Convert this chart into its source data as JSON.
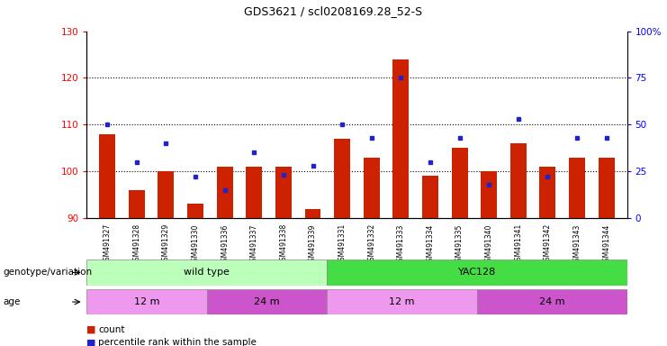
{
  "title": "GDS3621 / scl0208169.28_52-S",
  "samples": [
    "GSM491327",
    "GSM491328",
    "GSM491329",
    "GSM491330",
    "GSM491336",
    "GSM491337",
    "GSM491338",
    "GSM491339",
    "GSM491331",
    "GSM491332",
    "GSM491333",
    "GSM491334",
    "GSM491335",
    "GSM491340",
    "GSM491341",
    "GSM491342",
    "GSM491343",
    "GSM491344"
  ],
  "counts": [
    108,
    96,
    100,
    93,
    101,
    101,
    101,
    92,
    107,
    103,
    124,
    99,
    105,
    100,
    106,
    101,
    103,
    103
  ],
  "percentile_ranks": [
    50,
    30,
    40,
    22,
    15,
    35,
    23,
    28,
    50,
    43,
    75,
    30,
    43,
    18,
    53,
    22,
    43,
    43
  ],
  "ylim_left": [
    90,
    130
  ],
  "ylim_right": [
    0,
    100
  ],
  "yticks_left": [
    90,
    100,
    110,
    120,
    130
  ],
  "yticks_right": [
    0,
    25,
    50,
    75,
    100
  ],
  "bar_color": "#cc2200",
  "dot_color": "#2222cc",
  "background_color": "#ffffff",
  "genotype_groups": [
    {
      "label": "wild type",
      "start": 0,
      "end": 8,
      "color": "#bbffbb"
    },
    {
      "label": "YAC128",
      "start": 8,
      "end": 18,
      "color": "#44dd44"
    }
  ],
  "age_groups": [
    {
      "label": "12 m",
      "start": 0,
      "end": 4,
      "color": "#ee99ee"
    },
    {
      "label": "24 m",
      "start": 4,
      "end": 8,
      "color": "#cc55cc"
    },
    {
      "label": "12 m",
      "start": 8,
      "end": 13,
      "color": "#ee99ee"
    },
    {
      "label": "24 m",
      "start": 13,
      "end": 18,
      "color": "#cc55cc"
    }
  ],
  "legend_count_color": "#cc2200",
  "legend_pct_color": "#2222cc",
  "xlabel_genotype": "genotype/variation",
  "xlabel_age": "age"
}
